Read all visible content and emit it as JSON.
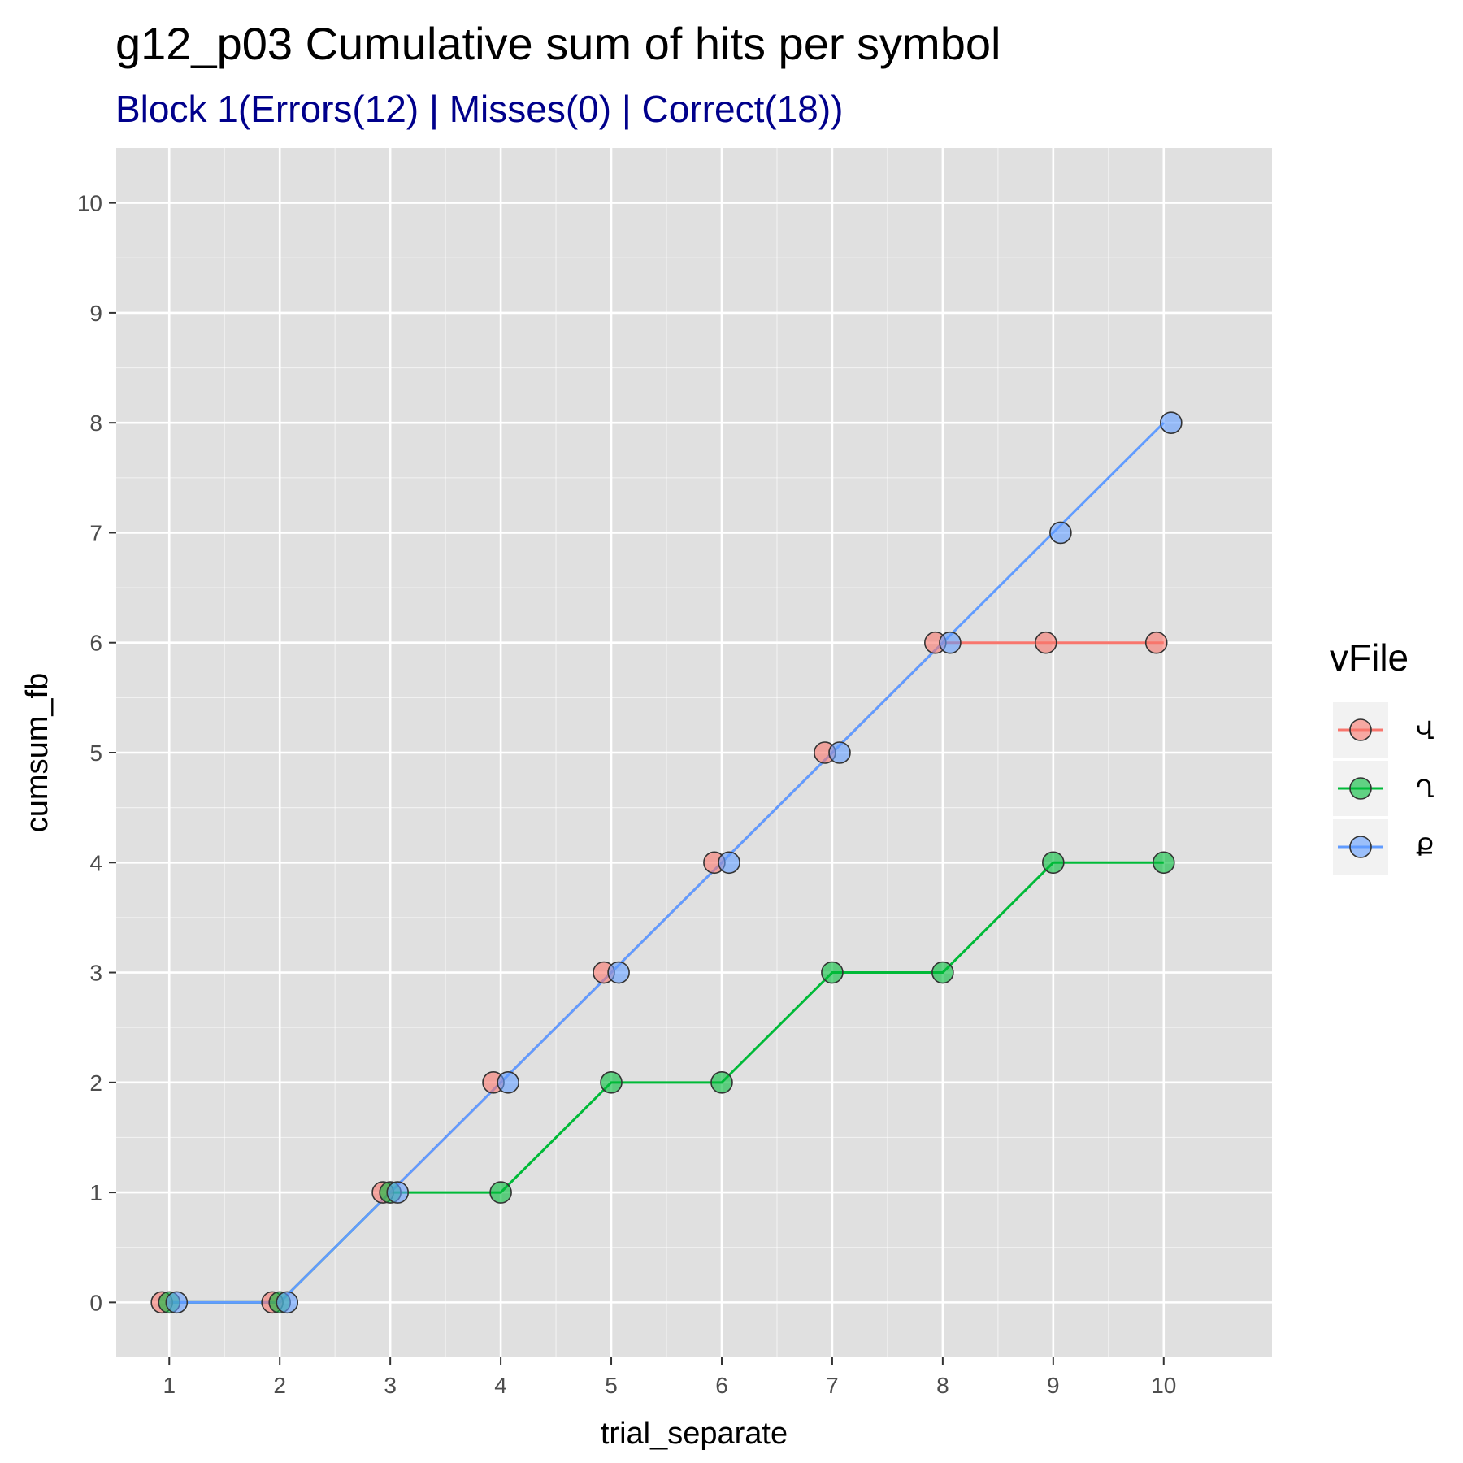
{
  "chart_data": {
    "type": "line",
    "title": "g12_p03 Cumulative sum of hits per symbol",
    "subtitle": "Block 1(Errors(12) | Misses(0) | Correct(18))",
    "xlabel": "trial_separate",
    "ylabel": "cumsum_fb",
    "x": [
      1,
      2,
      3,
      4,
      5,
      6,
      7,
      8,
      9,
      10
    ],
    "x_ticks": [
      "1",
      "2",
      "3",
      "4",
      "5",
      "6",
      "7",
      "8",
      "9",
      "10"
    ],
    "y_ticks": [
      "0",
      "1",
      "2",
      "3",
      "4",
      "5",
      "6",
      "7",
      "8",
      "9",
      "10"
    ],
    "xlim": [
      0.52,
      10.98
    ],
    "ylim": [
      -0.5,
      10.5
    ],
    "grid": true,
    "legend": {
      "title": "vFile",
      "position": "right"
    },
    "series": [
      {
        "name": "Վ",
        "color": "#f8766d",
        "x": [
          1,
          2,
          3,
          4,
          5,
          6,
          7,
          8,
          9,
          10
        ],
        "values": [
          0,
          0,
          1,
          2,
          3,
          4,
          5,
          6,
          6,
          6
        ]
      },
      {
        "name": "Ղ",
        "color": "#00ba38",
        "x": [
          1,
          2,
          3,
          4,
          5,
          6,
          7,
          8,
          9,
          10
        ],
        "values": [
          0,
          0,
          1,
          1,
          2,
          2,
          3,
          3,
          4,
          4
        ]
      },
      {
        "name": "Ք",
        "color": "#619cff",
        "x": [
          1,
          2,
          3,
          4,
          5,
          6,
          7,
          8,
          9,
          10
        ],
        "values": [
          0,
          0,
          1,
          2,
          3,
          4,
          5,
          6,
          7,
          8
        ]
      }
    ]
  },
  "colors": {
    "panel_background": "#e0e0e0",
    "grid": "#ffffff",
    "subtitle": "#00008b",
    "point_outline": "#333333"
  }
}
